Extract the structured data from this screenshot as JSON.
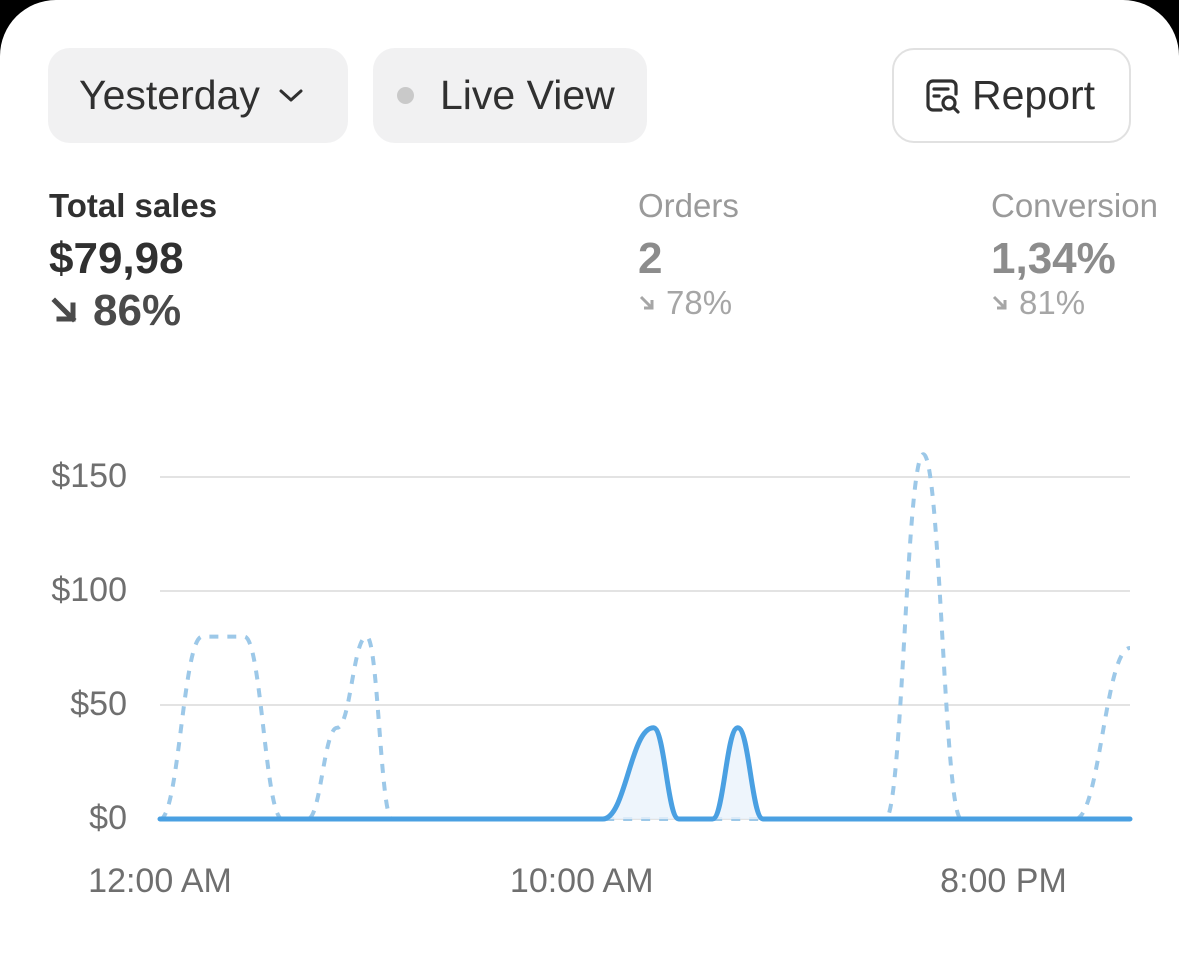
{
  "toolbar": {
    "date_range_label": "Yesterday",
    "live_view_label": "Live View",
    "report_label": "Report"
  },
  "metrics": {
    "total_sales": {
      "label": "Total sales",
      "value": "$79,98",
      "change": "86%",
      "direction": "down"
    },
    "orders": {
      "label": "Orders",
      "value": "2",
      "change": "78%",
      "direction": "down"
    },
    "conversion": {
      "label": "Conversion",
      "value": "1,34%",
      "change": "81%",
      "direction": "down"
    }
  },
  "colors": {
    "current_series": "#4aa0e2",
    "comparison_series": "#9cc8e8",
    "text_primary": "#303030",
    "text_muted": "#9a9a9a",
    "grid": "#e3e3e3"
  },
  "chart_data": {
    "type": "line",
    "y_tick_labels": [
      "$0",
      "$50",
      "$100",
      "$150"
    ],
    "y_ticks": [
      0,
      50,
      100,
      150
    ],
    "x_tick_labels": [
      "12:00 AM",
      "10:00 AM",
      "8:00 PM"
    ],
    "x_tick_hours": [
      0,
      10,
      20
    ],
    "xlim": [
      0,
      23
    ],
    "ylim": [
      0,
      150
    ],
    "grid": true,
    "series": [
      {
        "style": "solid",
        "x": [
          0,
          10.5,
          11.7,
          12.3,
          13.1,
          13.7,
          14.3,
          15.1,
          23
        ],
        "values": [
          0,
          0,
          40,
          0,
          0,
          40,
          0,
          0,
          0
        ]
      },
      {
        "style": "dashed",
        "x": [
          0,
          1.0,
          2.0,
          2.9,
          3.5,
          4.2,
          4.9,
          5.5,
          6.0,
          10.5,
          13.3,
          17.2,
          18.1,
          19.0,
          21.0,
          21.7,
          23
        ],
        "values": [
          0,
          80,
          80,
          0,
          0,
          40,
          80,
          0,
          0,
          0,
          0,
          0,
          160,
          0,
          0,
          0,
          75
        ]
      }
    ]
  }
}
